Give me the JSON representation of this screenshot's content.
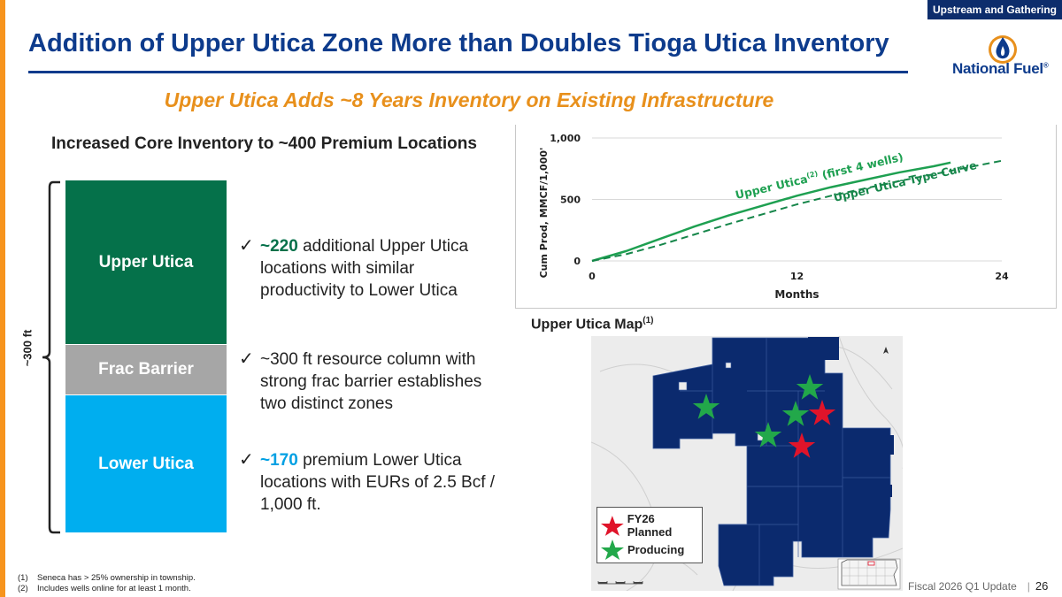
{
  "header": {
    "tag": "Upstream and Gathering",
    "title": "Addition of Upper Utica Zone More than Doubles Tioga Utica Inventory",
    "logo_text": "National Fuel",
    "logo_mark": "®"
  },
  "subtitle": "Upper Utica Adds ~8 Years Inventory on Existing Infrastructure",
  "inventory": {
    "heading": "Increased Core Inventory to ~400 Premium Locations",
    "zones": [
      "Upper Utica",
      "Frac Barrier",
      "Lower Utica"
    ],
    "column_label": "~300 ft"
  },
  "bullets": [
    {
      "highlight": "~220",
      "text": " additional Upper Utica locations with similar productivity to Lower Utica"
    },
    {
      "highlight": "",
      "text": "~300 ft resource column with strong frac barrier establishes two distinct zones"
    },
    {
      "highlight": "~170",
      "text": " premium Lower Utica locations with EURs of 2.5 Bcf / 1,000 ft."
    }
  ],
  "colors": {
    "navy": "#0d3b8c",
    "orange": "#e8901c",
    "green": "#05714a",
    "cyan": "#00aeef",
    "gray": "#a6a6a6",
    "chart_green": "#1ea051",
    "star_green": "#22a84a",
    "star_red": "#e0142a"
  },
  "chart_data": {
    "type": "line",
    "title": "",
    "xlabel": "Months",
    "ylabel": "Cum Prod, MMCF/1,000'",
    "xlim": [
      0,
      24
    ],
    "ylim": [
      0,
      1000
    ],
    "x_ticks": [
      "0",
      "12",
      "24"
    ],
    "y_ticks": [
      "1,000",
      "500",
      "0"
    ],
    "series": [
      {
        "name": "Upper Utica",
        "name_sup": "(2)",
        "name_suffix": " (first 4 wells)",
        "style": "solid",
        "x": [
          0,
          2,
          4,
          6,
          8,
          10,
          12,
          14,
          16,
          18,
          20,
          21
        ],
        "y": [
          0,
          80,
          180,
          280,
          370,
          450,
          530,
          600,
          660,
          720,
          770,
          800
        ]
      },
      {
        "name": "Upper Utica Type Curve",
        "style": "dashed",
        "x": [
          0,
          2,
          4,
          6,
          8,
          10,
          12,
          14,
          16,
          18,
          20,
          22,
          24
        ],
        "y": [
          0,
          55,
          130,
          215,
          300,
          380,
          460,
          530,
          590,
          650,
          705,
          760,
          815
        ]
      }
    ]
  },
  "map": {
    "title": "Upper Utica Map",
    "title_sup": "(1)",
    "legend": [
      "FY26 Planned",
      "Producing"
    ]
  },
  "footnotes": [
    {
      "num": "(1)",
      "text": "Seneca has > 25% ownership in township."
    },
    {
      "num": "(2)",
      "text": "Includes wells online for at least 1 month."
    }
  ],
  "footer": {
    "text": "Fiscal 2026 Q1 Update",
    "page": "26"
  }
}
